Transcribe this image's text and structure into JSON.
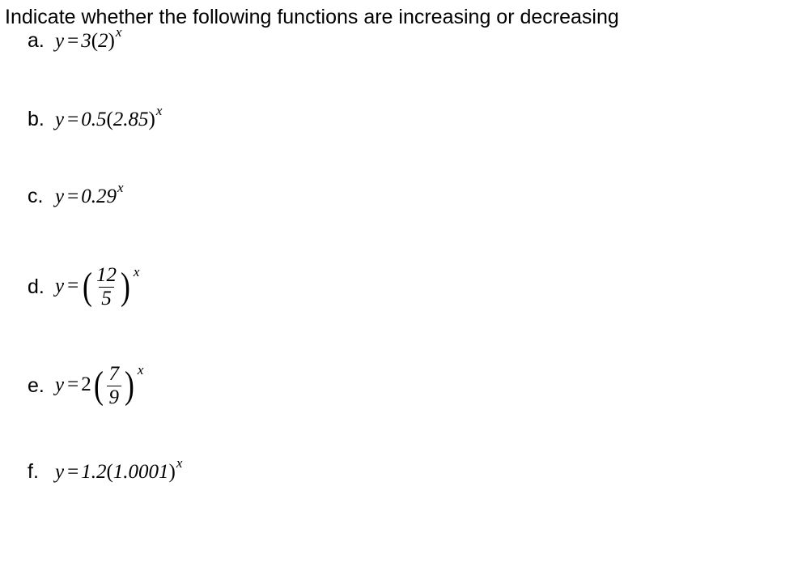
{
  "heading": "Indicate whether the following functions are increasing or decreasing",
  "text_color": "#000000",
  "background_color": "#ffffff",
  "heading_font": "Arial",
  "math_font": "Times New Roman",
  "heading_fontsize_pt": 19,
  "math_fontsize_pt": 19,
  "items": {
    "a": {
      "label": "a.",
      "lhs": "y",
      "eq": "=",
      "coef": "3",
      "lp": "(",
      "base": "2",
      "rp": ")",
      "exp": "x"
    },
    "b": {
      "label": "b.",
      "lhs": "y",
      "eq": "=",
      "coef": "0.5",
      "lp": "(",
      "base": "2.85",
      "rp": ")",
      "exp": "x"
    },
    "c": {
      "label": "c.",
      "lhs": "y",
      "eq": "=",
      "coef": "0.29",
      "exp": "x"
    },
    "d": {
      "label": "d.",
      "lhs": "y",
      "eq": "=",
      "num": "12",
      "den": "5",
      "exp": "x"
    },
    "e": {
      "label": "e.",
      "lhs": "y",
      "eq": "=",
      "coef": "2",
      "num": "7",
      "den": "9",
      "exp": "x"
    },
    "f": {
      "label": "f.",
      "lhs": "y",
      "eq": "=",
      "coef": "1.2",
      "lp": "(",
      "base": "1.0001",
      "rp": ")",
      "exp": "x"
    }
  }
}
